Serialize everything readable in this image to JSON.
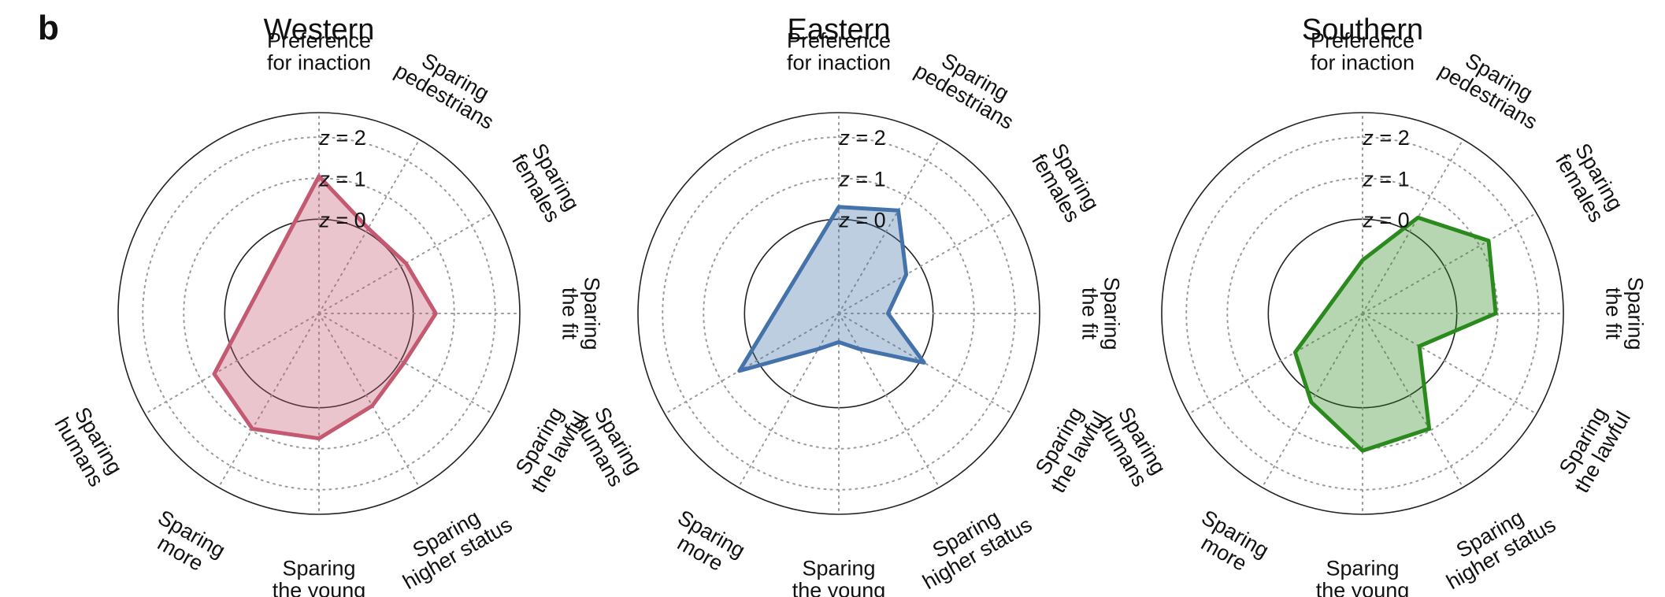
{
  "panel_letter": "b",
  "colors": {
    "Western": "#c45a72",
    "Eastern": "#4472aa",
    "Southern": "#2b8a1e"
  },
  "chart_data": [
    {
      "type": "radar",
      "title": "Western",
      "axes": [
        [
          "Preference",
          "for inaction"
        ],
        [
          "Sparing",
          "pedestrians"
        ],
        [
          "Sparing",
          "females"
        ],
        [
          "Sparing",
          "the fit"
        ],
        [
          "Sparing",
          "the lawful"
        ],
        [
          "Sparing",
          "higher status"
        ],
        [
          "Sparing",
          "the young"
        ],
        [
          "Sparing",
          "more"
        ],
        [
          "Sparing",
          "humans"
        ]
      ],
      "ring_labels": [
        "z = 0",
        "z = 1",
        "z = 2"
      ],
      "ring_values": [
        0,
        1,
        2
      ],
      "rlim": [
        -2.3,
        2.6
      ],
      "values": [
        1.05,
        0.1,
        0.15,
        0.55,
        0.1,
        0.3,
        0.75,
        0.95,
        0.65
      ],
      "color": "#c45a72",
      "grid": true
    },
    {
      "type": "radar",
      "title": "Eastern",
      "axes": [
        [
          "Preference",
          "for inaction"
        ],
        [
          "Sparing",
          "pedestrians"
        ],
        [
          "Sparing",
          "females"
        ],
        [
          "Sparing",
          "the fit"
        ],
        [
          "Sparing",
          "the lawful"
        ],
        [
          "Sparing",
          "higher status"
        ],
        [
          "Sparing",
          "the young"
        ],
        [
          "Sparing",
          "more"
        ],
        [
          "Sparing",
          "humans"
        ]
      ],
      "ring_labels": [
        "z = 0",
        "z = 1",
        "z = 2"
      ],
      "ring_values": [
        0,
        1,
        2
      ],
      "rlim": [
        -2.3,
        2.6
      ],
      "values": [
        0.3,
        0.6,
        -0.4,
        -1.1,
        0.1,
        -1.3,
        -1.6,
        -1.3,
        0.5
      ],
      "color": "#4472aa",
      "grid": true
    },
    {
      "type": "radar",
      "title": "Southern",
      "axes": [
        [
          "Preference",
          "for inaction"
        ],
        [
          "Sparing",
          "pedestrians"
        ],
        [
          "Sparing",
          "females"
        ],
        [
          "Sparing",
          "the fit"
        ],
        [
          "Sparing",
          "the lawful"
        ],
        [
          "Sparing",
          "higher status"
        ],
        [
          "Sparing",
          "the young"
        ],
        [
          "Sparing",
          "more"
        ],
        [
          "Sparing",
          "humans"
        ]
      ],
      "ring_labels": [
        "z = 0",
        "z = 1",
        "z = 2"
      ],
      "ring_values": [
        0,
        1,
        2
      ],
      "rlim": [
        -2.3,
        2.6
      ],
      "values": [
        -1.0,
        0.4,
        1.25,
        0.95,
        -0.7,
        0.95,
        1.05,
        0.2,
        -0.4
      ],
      "color": "#2b8a1e",
      "grid": true
    }
  ]
}
